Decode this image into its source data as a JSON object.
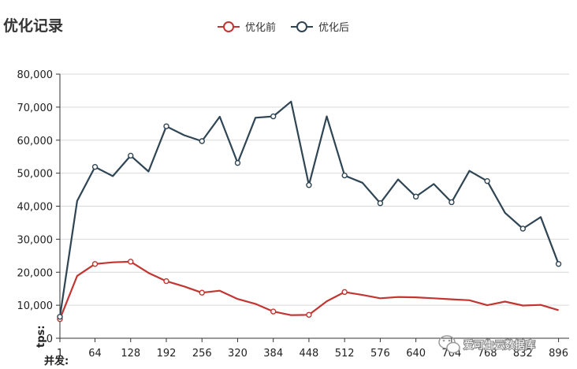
{
  "chart_data": {
    "type": "line",
    "title": "优化记录",
    "xlabel": "并发:",
    "ylabel": "tps:",
    "xlim": [
      1,
      915
    ],
    "ylim": [
      0,
      80000
    ],
    "x_ticks": [
      1,
      64,
      128,
      192,
      256,
      320,
      384,
      448,
      512,
      576,
      640,
      704,
      768,
      832,
      896
    ],
    "y_ticks": [
      0,
      10000,
      20000,
      30000,
      40000,
      50000,
      60000,
      70000,
      80000
    ],
    "y_tick_labels": [
      "0",
      "10,000",
      "20,000",
      "30,000",
      "40,000",
      "50,000",
      "60,000",
      "70,000",
      "80,000"
    ],
    "legend_position": "top-center",
    "grid": true,
    "series": [
      {
        "name": "优化前",
        "color": "#c23531",
        "x": [
          1,
          32,
          64,
          96,
          128,
          160,
          192,
          224,
          256,
          288,
          320,
          352,
          384,
          416,
          448,
          480,
          512,
          544,
          576,
          608,
          640,
          672,
          704,
          736,
          768,
          800,
          832,
          864,
          896
        ],
        "values": [
          5800,
          18900,
          22500,
          23000,
          23200,
          19800,
          17300,
          15700,
          13800,
          14400,
          11900,
          10400,
          8100,
          7000,
          7100,
          11200,
          14000,
          13100,
          12100,
          12500,
          12400,
          12100,
          11800,
          11500,
          10000,
          11100,
          9900,
          10100,
          8500
        ]
      },
      {
        "name": "优化后",
        "color": "#2f4554",
        "x": [
          1,
          32,
          64,
          96,
          128,
          160,
          192,
          224,
          256,
          288,
          320,
          352,
          384,
          416,
          448,
          480,
          512,
          544,
          576,
          608,
          640,
          672,
          704,
          736,
          768,
          800,
          832,
          864,
          896
        ],
        "values": [
          6500,
          41600,
          51900,
          49100,
          55300,
          50500,
          64200,
          61500,
          59700,
          67100,
          53100,
          66800,
          67200,
          71700,
          46400,
          67200,
          49300,
          47100,
          40900,
          48100,
          42900,
          46700,
          41200,
          50700,
          47600,
          38000,
          33200,
          36700,
          22500
        ]
      }
    ],
    "markers": {
      "优化前": [
        1,
        64,
        128,
        192,
        256,
        384,
        448,
        512
      ],
      "优化后": [
        1,
        64,
        128,
        192,
        256,
        320,
        384,
        448,
        512,
        576,
        640,
        704,
        768,
        832,
        896
      ]
    }
  },
  "watermark": {
    "text": "爱可生云数据库",
    "icon": "wechat-icon"
  }
}
